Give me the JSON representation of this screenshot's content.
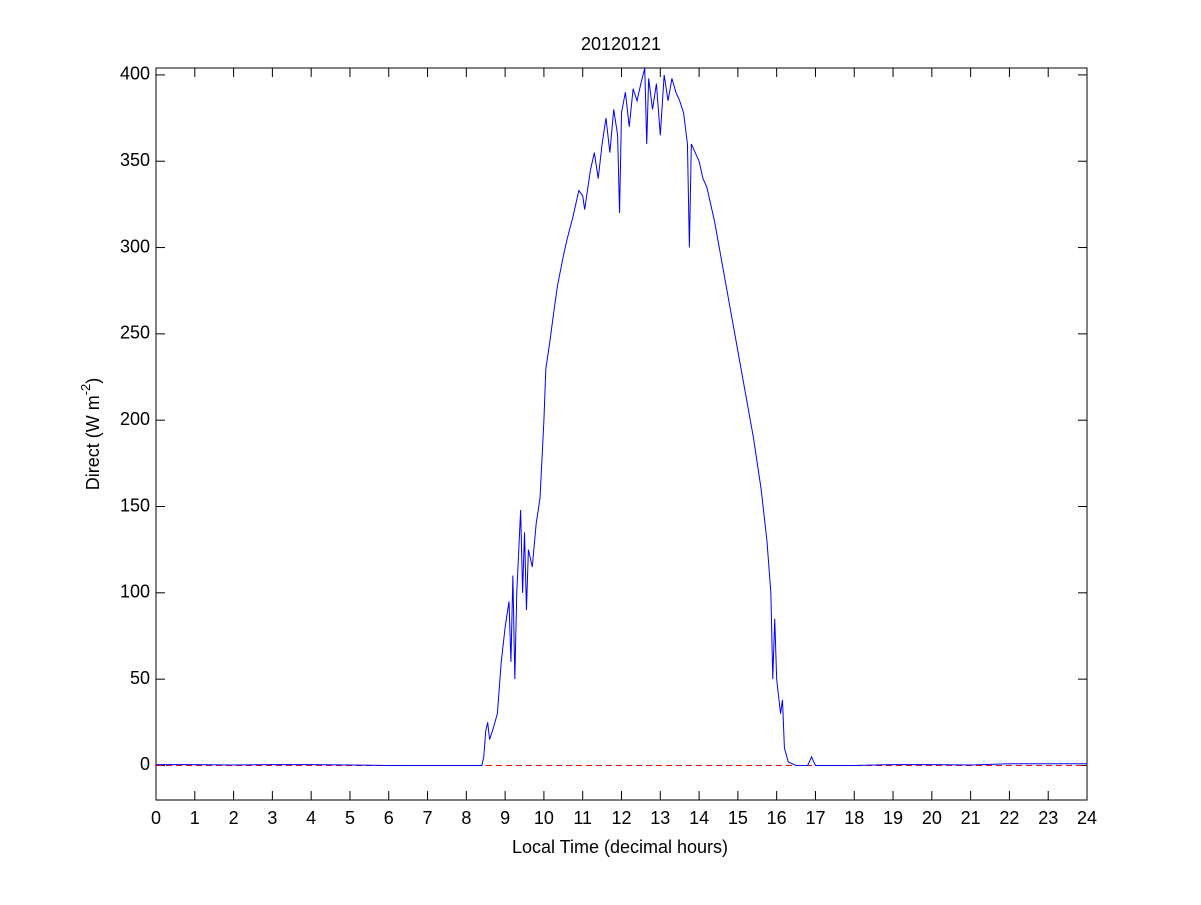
{
  "chart_data": {
    "type": "line",
    "title": "20120121",
    "xlabel": "Local Time (decimal hours)",
    "ylabel": [
      "Direct (W m",
      "-2",
      ")"
    ],
    "x": [
      0,
      1,
      2,
      3,
      4,
      5,
      6,
      7,
      8,
      8.4,
      8.45,
      8.5,
      8.55,
      8.6,
      8.7,
      8.8,
      8.9,
      9.0,
      9.1,
      9.15,
      9.2,
      9.25,
      9.3,
      9.4,
      9.45,
      9.5,
      9.55,
      9.6,
      9.7,
      9.8,
      9.9,
      10.0,
      10.05,
      10.15,
      10.25,
      10.35,
      10.5,
      10.6,
      10.75,
      10.9,
      11.0,
      11.05,
      11.2,
      11.3,
      11.4,
      11.5,
      11.6,
      11.7,
      11.8,
      11.9,
      11.95,
      12.0,
      12.1,
      12.2,
      12.3,
      12.4,
      12.5,
      12.6,
      12.65,
      12.7,
      12.8,
      12.9,
      13.0,
      13.1,
      13.2,
      13.3,
      13.4,
      13.5,
      13.6,
      13.7,
      13.75,
      13.8,
      13.9,
      14.0,
      14.1,
      14.2,
      14.4,
      14.6,
      14.8,
      15.0,
      15.2,
      15.4,
      15.6,
      15.75,
      15.85,
      15.9,
      15.95,
      16.0,
      16.1,
      16.15,
      16.2,
      16.3,
      16.5,
      16.8,
      16.9,
      17.0,
      18,
      19,
      20,
      21,
      22,
      22.5,
      23,
      24
    ],
    "series": [
      {
        "name": "Direct",
        "color": "#0000ff",
        "values": [
          0.5,
          0.5,
          0.3,
          0.5,
          0.5,
          0.3,
          0,
          0,
          0,
          0,
          5,
          20,
          25,
          15,
          22,
          30,
          60,
          80,
          95,
          60,
          110,
          50,
          100,
          148,
          100,
          135,
          90,
          125,
          115,
          140,
          155,
          200,
          230,
          245,
          262,
          278,
          295,
          305,
          318,
          333,
          330,
          322,
          345,
          355,
          340,
          360,
          375,
          355,
          380,
          365,
          320,
          378,
          390,
          370,
          392,
          385,
          395,
          404,
          360,
          398,
          380,
          395,
          365,
          400,
          385,
          398,
          390,
          385,
          378,
          360,
          300,
          360,
          355,
          350,
          340,
          335,
          315,
          290,
          265,
          240,
          215,
          190,
          160,
          130,
          100,
          50,
          85,
          50,
          30,
          38,
          10,
          2,
          0,
          0,
          5,
          0,
          0,
          0.5,
          0.5,
          0.3,
          1,
          1,
          1,
          1
        ]
      }
    ],
    "hline": 0,
    "hline_color": "#ff0000",
    "xlim": [
      0,
      24
    ],
    "xticks": [
      0,
      1,
      2,
      3,
      4,
      5,
      6,
      7,
      8,
      9,
      10,
      11,
      12,
      13,
      14,
      15,
      16,
      17,
      18,
      19,
      20,
      21,
      22,
      23,
      24
    ],
    "ylim": [
      -20,
      404
    ],
    "yticks": [
      0,
      50,
      100,
      150,
      200,
      250,
      300,
      350,
      400
    ]
  }
}
